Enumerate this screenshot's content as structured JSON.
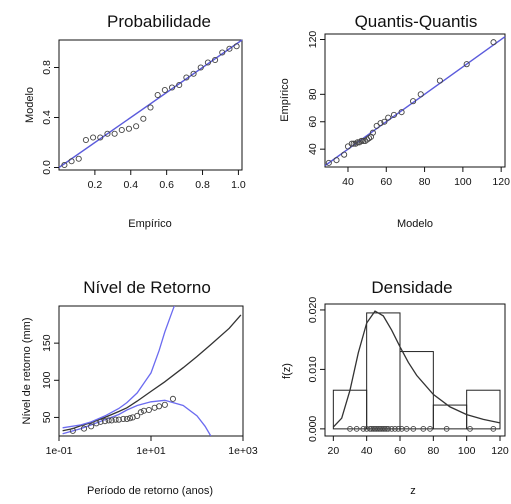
{
  "chart_data": [
    {
      "type": "scatter",
      "title": "Probabilidade",
      "xlabel": "Empírico",
      "ylabel": "Modelo",
      "xlim": [
        0,
        1.02
      ],
      "ylim": [
        -0.02,
        1.02
      ],
      "xticks": [
        0.2,
        0.4,
        0.6,
        0.8,
        1.0
      ],
      "xtick_labels": [
        "0.2",
        "0.4",
        "0.6",
        "0.8",
        "1.0"
      ],
      "yticks": [
        0.0,
        0.4,
        0.8
      ],
      "ytick_labels": [
        "0.0",
        "0.4",
        "0.8"
      ],
      "reference_line": {
        "x": [
          0,
          1.02
        ],
        "y": [
          0,
          1.02
        ],
        "color": "#5b5bdc"
      },
      "points": {
        "x": [
          0.03,
          0.07,
          0.11,
          0.15,
          0.19,
          0.23,
          0.27,
          0.31,
          0.35,
          0.39,
          0.43,
          0.47,
          0.51,
          0.55,
          0.59,
          0.63,
          0.67,
          0.71,
          0.75,
          0.79,
          0.83,
          0.87,
          0.91,
          0.95,
          0.99
        ],
        "y": [
          0.02,
          0.05,
          0.07,
          0.22,
          0.24,
          0.24,
          0.27,
          0.27,
          0.3,
          0.31,
          0.33,
          0.39,
          0.48,
          0.58,
          0.62,
          0.64,
          0.66,
          0.72,
          0.75,
          0.8,
          0.84,
          0.86,
          0.92,
          0.95,
          0.97
        ]
      }
    },
    {
      "type": "scatter",
      "title": "Quantis-Quantis",
      "xlabel": "Modelo",
      "ylabel": "Empírico",
      "xlim": [
        28,
        122
      ],
      "ylim": [
        27,
        124
      ],
      "xticks": [
        40,
        60,
        80,
        100,
        120
      ],
      "xtick_labels": [
        "40",
        "60",
        "80",
        "100",
        "120"
      ],
      "yticks": [
        40,
        60,
        80,
        120
      ],
      "ytick_labels": [
        "40",
        "60",
        "80",
        "120"
      ],
      "reference_line": {
        "x": [
          28,
          122
        ],
        "y": [
          28,
          122
        ],
        "color": "#5b5bdc"
      },
      "points": {
        "x": [
          30,
          34,
          38,
          40,
          42,
          43,
          44,
          45,
          46,
          47,
          48,
          49,
          50,
          51,
          52,
          53,
          55,
          57,
          59,
          61,
          64,
          68,
          74,
          78,
          88,
          102,
          116
        ],
        "y": [
          30,
          32,
          36,
          42,
          44,
          44,
          44,
          45,
          45,
          46,
          46,
          46,
          47,
          48,
          49,
          52,
          57,
          59,
          60,
          63,
          65,
          67,
          75,
          80,
          90,
          102,
          118
        ]
      }
    },
    {
      "type": "line",
      "title": "Nível de Retorno",
      "xlabel": "Período de retorno (anos)",
      "ylabel": "Nível de retorno (mm)",
      "x_scale": "log10",
      "xlim": [
        0.1,
        1000
      ],
      "ylim": [
        25,
        200
      ],
      "xticks": [
        0.1,
        10,
        1000
      ],
      "xtick_labels": [
        "1e-01",
        "1e+01",
        "1e+03"
      ],
      "yticks": [
        50,
        100,
        150
      ],
      "ytick_labels": [
        "50",
        "100",
        "150"
      ],
      "series": [
        {
          "role": "estimate",
          "color": "#333333",
          "x": [
            0.12,
            0.2,
            0.3,
            0.5,
            1,
            2,
            3,
            5,
            10,
            20,
            50,
            100,
            200,
            500,
            900
          ],
          "y": [
            32,
            35,
            39,
            43,
            50,
            58,
            63,
            72,
            85,
            98,
            117,
            132,
            148,
            170,
            188
          ]
        },
        {
          "role": "upper bound",
          "color": "#6b6bf0",
          "x": [
            0.12,
            0.3,
            0.5,
            1,
            2,
            3,
            5,
            10,
            15,
            20,
            30,
            40
          ],
          "y": [
            36,
            40,
            44,
            52,
            62,
            70,
            83,
            110,
            140,
            165,
            195,
            215
          ]
        },
        {
          "role": "lower bound",
          "color": "#6b6bf0",
          "x": [
            0.12,
            0.3,
            0.5,
            1,
            2,
            3,
            5,
            10,
            20,
            50,
            100,
            150,
            200
          ],
          "y": [
            28,
            35,
            40,
            47,
            54,
            60,
            66,
            71,
            73,
            66,
            52,
            38,
            25
          ]
        }
      ],
      "points": {
        "x": [
          0.2,
          0.35,
          0.5,
          0.65,
          0.8,
          1,
          1.2,
          1.4,
          1.7,
          2,
          2.5,
          3,
          3.5,
          4,
          5,
          6,
          7,
          9,
          12,
          15,
          20,
          30
        ],
        "y": [
          32,
          35,
          38,
          42,
          44,
          45,
          46,
          46,
          47,
          47,
          48,
          48,
          49,
          50,
          52,
          57,
          59,
          60,
          63,
          65,
          67,
          75
        ]
      }
    },
    {
      "type": "histogram",
      "title": "Densidade",
      "xlabel": "z",
      "ylabel": "f(z)",
      "xlim": [
        15,
        123
      ],
      "ylim": [
        -0.0012,
        0.021
      ],
      "xticks": [
        20,
        40,
        60,
        80,
        100,
        120
      ],
      "xtick_labels": [
        "20",
        "40",
        "60",
        "80",
        "100",
        "120"
      ],
      "yticks": [
        0.0,
        0.01,
        0.02
      ],
      "ytick_labels": [
        "0.000",
        "0.010",
        "0.020"
      ],
      "bins": [
        [
          20,
          40
        ],
        [
          40,
          60
        ],
        [
          60,
          80
        ],
        [
          80,
          100
        ],
        [
          100,
          120
        ]
      ],
      "densities": [
        0.0065,
        0.0195,
        0.013,
        0.004,
        0.0065
      ],
      "density_curve": {
        "x": [
          20,
          25,
          30,
          35,
          40,
          45,
          50,
          55,
          60,
          65,
          70,
          80,
          90,
          100,
          110,
          120
        ],
        "y": [
          0.0003,
          0.0018,
          0.0065,
          0.0128,
          0.0178,
          0.0198,
          0.019,
          0.0166,
          0.0138,
          0.0112,
          0.009,
          0.0058,
          0.0037,
          0.0024,
          0.0016,
          0.001
        ]
      },
      "rug": [
        30,
        34,
        38,
        40,
        42,
        43,
        44,
        45,
        46,
        47,
        48,
        49,
        50,
        51,
        52,
        53,
        55,
        57,
        59,
        61,
        64,
        68,
        74,
        78,
        88,
        102,
        116
      ]
    }
  ]
}
